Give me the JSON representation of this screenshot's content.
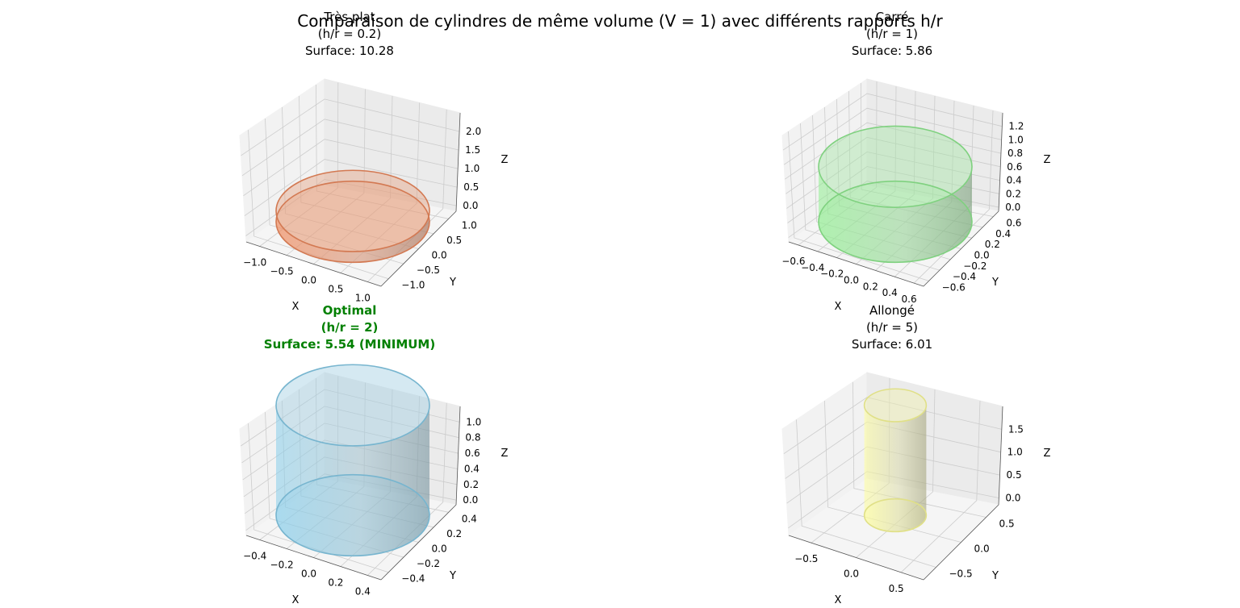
{
  "figure_title": "Comparaison de cylindres de même volume (V = 1) avec différents rapports h/r",
  "colors": {
    "flat": "#f08a5d",
    "square": "#90ee90",
    "optimal": "#87ceeb",
    "long": "#ffff99",
    "optimal_title": "#008000",
    "pane": "#f2f2f2",
    "grid": "#cccccc"
  },
  "chart_data": [
    {
      "type": "surface3d",
      "shape": "cylinder",
      "title_lines": [
        "Très plat",
        "(h/r = 0.2)",
        "Surface: 10.28"
      ],
      "title_bold": false,
      "h_over_r": 0.2,
      "radius": 1.17,
      "height": 0.23,
      "surface": 10.28,
      "xlabel": "X",
      "ylabel": "Y",
      "zlabel": "Z",
      "xlim": [
        -1.17,
        1.17
      ],
      "ylim": [
        -1.17,
        1.17
      ],
      "zlim": [
        0,
        2.34
      ],
      "xticks": [
        "−1.0",
        "−0.5",
        "0.0",
        "0.5",
        "1.0"
      ],
      "yticks": [
        "−1.0",
        "−0.5",
        "0.0",
        "0.5",
        "1.0"
      ],
      "zticks": [
        "0.0",
        "0.5",
        "1.0",
        "1.5",
        "2.0"
      ],
      "color": "#f08a5d",
      "grid": true
    },
    {
      "type": "surface3d",
      "shape": "cylinder",
      "title_lines": [
        "Carré",
        "(h/r = 1)",
        "Surface: 5.86"
      ],
      "title_bold": false,
      "h_over_r": 1,
      "radius": 0.68,
      "height": 0.68,
      "surface": 5.86,
      "xlabel": "X",
      "ylabel": "Y",
      "zlabel": "Z",
      "xlim": [
        -0.68,
        0.68
      ],
      "ylim": [
        -0.68,
        0.68
      ],
      "zlim": [
        0,
        1.36
      ],
      "xticks": [
        "−0.6",
        "−0.4",
        "−0.2",
        "0.0",
        "0.2",
        "0.4",
        "0.6"
      ],
      "yticks": [
        "−0.6",
        "−0.4",
        "−0.2",
        "0.0",
        "0.2",
        "0.4",
        "0.6"
      ],
      "zticks": [
        "0.0",
        "0.2",
        "0.4",
        "0.6",
        "0.8",
        "1.0",
        "1.2"
      ],
      "color": "#90ee90",
      "grid": true
    },
    {
      "type": "surface3d",
      "shape": "cylinder",
      "title_lines": [
        "Optimal",
        "(h/r = 2)",
        "Surface: 5.54 (MINIMUM)"
      ],
      "title_bold": true,
      "h_over_r": 2,
      "radius": 0.54,
      "height": 1.08,
      "surface": 5.54,
      "xlabel": "X",
      "ylabel": "Y",
      "zlabel": "Z",
      "xlim": [
        -0.54,
        0.54
      ],
      "ylim": [
        -0.54,
        0.54
      ],
      "zlim": [
        0,
        1.08
      ],
      "xticks": [
        "−0.4",
        "−0.2",
        "0.0",
        "0.2",
        "0.4"
      ],
      "yticks": [
        "−0.4",
        "−0.2",
        "0.0",
        "0.2",
        "0.4"
      ],
      "zticks": [
        "0.0",
        "0.2",
        "0.4",
        "0.6",
        "0.8",
        "1.0"
      ],
      "color": "#87ceeb",
      "grid": true
    },
    {
      "type": "surface3d",
      "shape": "cylinder",
      "title_lines": [
        "Allongé",
        "(h/r = 5)",
        "Surface: 6.01"
      ],
      "title_bold": false,
      "h_over_r": 5,
      "radius": 0.4,
      "height": 1.99,
      "surface": 6.01,
      "xlabel": "X",
      "ylabel": "Y",
      "zlabel": "Z",
      "xlim": [
        -0.99,
        0.99
      ],
      "ylim": [
        -0.99,
        0.99
      ],
      "zlim": [
        0,
        1.99
      ],
      "xticks": [
        "−0.5",
        "0.0",
        "0.5"
      ],
      "yticks": [
        "−0.5",
        "0.0",
        "0.5"
      ],
      "zticks": [
        "0.0",
        "0.5",
        "1.0",
        "1.5"
      ],
      "color": "#ffff99",
      "grid": true
    }
  ]
}
